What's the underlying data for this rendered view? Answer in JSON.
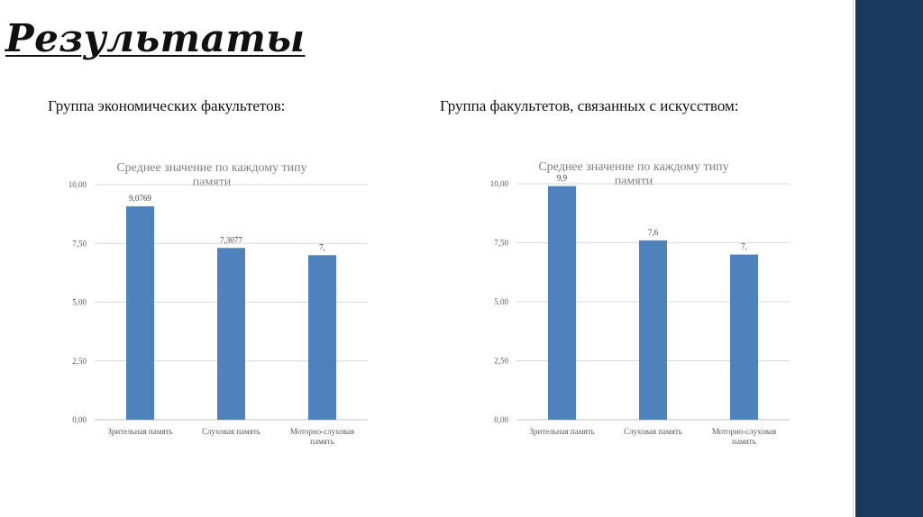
{
  "slide": {
    "title": "Результаты",
    "group_left": "Группа экономических факультетов:",
    "group_right": "Группа факультетов, связанных с искусством:",
    "accent_color": "#1b385e"
  },
  "chart_data": [
    {
      "type": "bar",
      "title_lines": [
        "Среднее значение по каждому типу",
        "памяти"
      ],
      "categories": [
        [
          "Зрительная память"
        ],
        [
          "Слуховая память"
        ],
        [
          "Моторно-слуховая",
          "память"
        ]
      ],
      "values": [
        9.0769,
        7.3077,
        7
      ],
      "data_labels": [
        "9,0769",
        "7,3077",
        "7,"
      ],
      "yticks": [
        "0,00",
        "2,50",
        "5,00",
        "7,50",
        "10,00"
      ],
      "ylim": [
        0,
        10
      ],
      "grid": true,
      "bar_color": "#4f81bd"
    },
    {
      "type": "bar",
      "title_lines": [
        "Среднее значение по каждому типу",
        "памяти"
      ],
      "categories": [
        [
          "Зрительная память"
        ],
        [
          "Слуховая память"
        ],
        [
          "Моторно-слуховая",
          "память"
        ]
      ],
      "values": [
        9.9,
        7.6,
        7
      ],
      "data_labels": [
        "9,9",
        "7,6",
        "7,"
      ],
      "yticks": [
        "0,00",
        "2,50",
        "5,00",
        "7,50",
        "10,00"
      ],
      "ylim": [
        0,
        10
      ],
      "grid": true,
      "bar_color": "#4f81bd"
    }
  ]
}
